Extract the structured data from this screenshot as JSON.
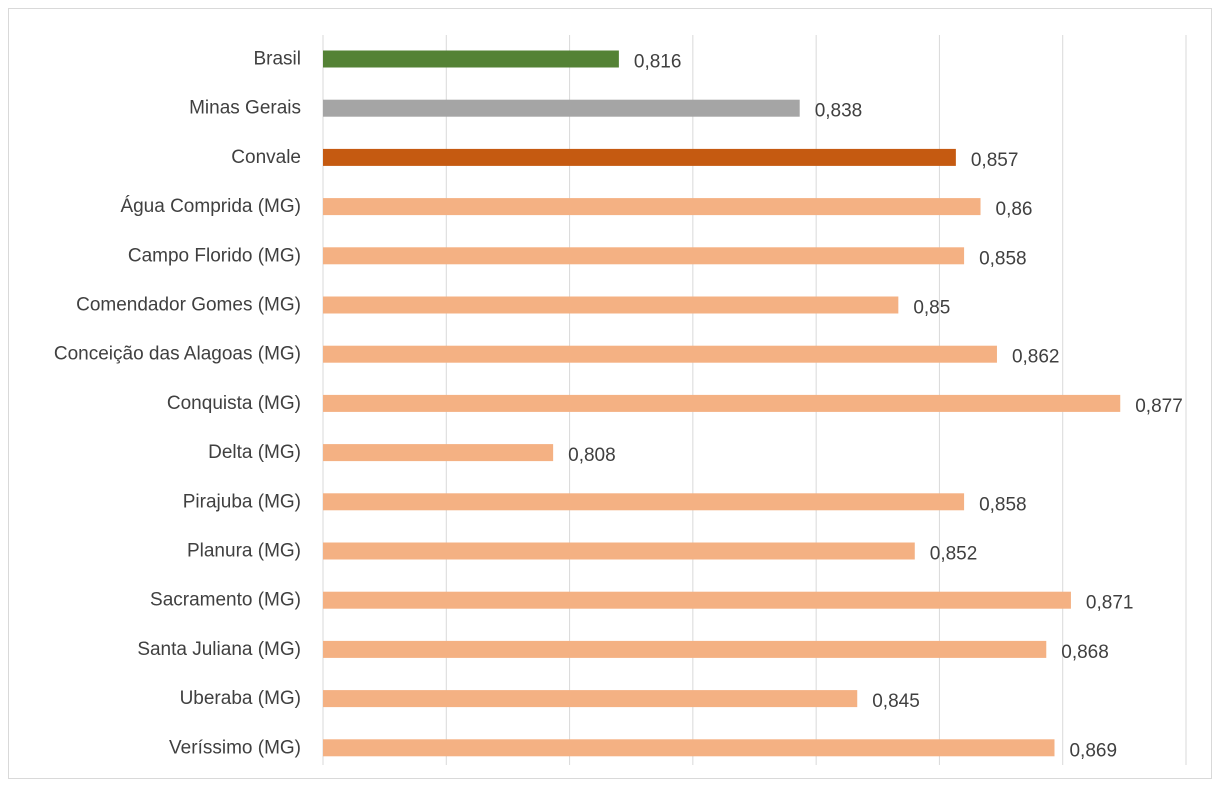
{
  "chart_data": {
    "type": "bar",
    "orientation": "horizontal",
    "title": "",
    "xlabel": "",
    "ylabel": "",
    "grid": true,
    "legend": "none",
    "xlim": [
      0.78,
      0.885
    ],
    "categories": [
      "Brasil",
      "Minas Gerais",
      "Convale",
      "Água Comprida (MG)",
      "Campo Florido (MG)",
      "Comendador Gomes (MG)",
      "Conceição das Alagoas (MG)",
      "Conquista (MG)",
      "Delta (MG)",
      "Pirajuba (MG)",
      "Planura (MG)",
      "Sacramento (MG)",
      "Santa Juliana (MG)",
      "Uberaba (MG)",
      "Veríssimo (MG)"
    ],
    "values": [
      0.816,
      0.838,
      0.857,
      0.86,
      0.858,
      0.85,
      0.862,
      0.877,
      0.808,
      0.858,
      0.852,
      0.871,
      0.868,
      0.845,
      0.869
    ],
    "value_labels": [
      "0,816",
      "0,838",
      "0,857",
      "0,86",
      "0,858",
      "0,85",
      "0,862",
      "0,877",
      "0,808",
      "0,858",
      "0,852",
      "0,871",
      "0,868",
      "0,845",
      "0,869"
    ],
    "bar_colors": [
      "#548235",
      "#a5a5a5",
      "#c55a11",
      "#f4b183",
      "#f4b183",
      "#f4b183",
      "#f4b183",
      "#f4b183",
      "#f4b183",
      "#f4b183",
      "#f4b183",
      "#f4b183",
      "#f4b183",
      "#f4b183",
      "#f4b183"
    ],
    "gridline_color": "#d9d9d9",
    "label_color": "#404040"
  }
}
